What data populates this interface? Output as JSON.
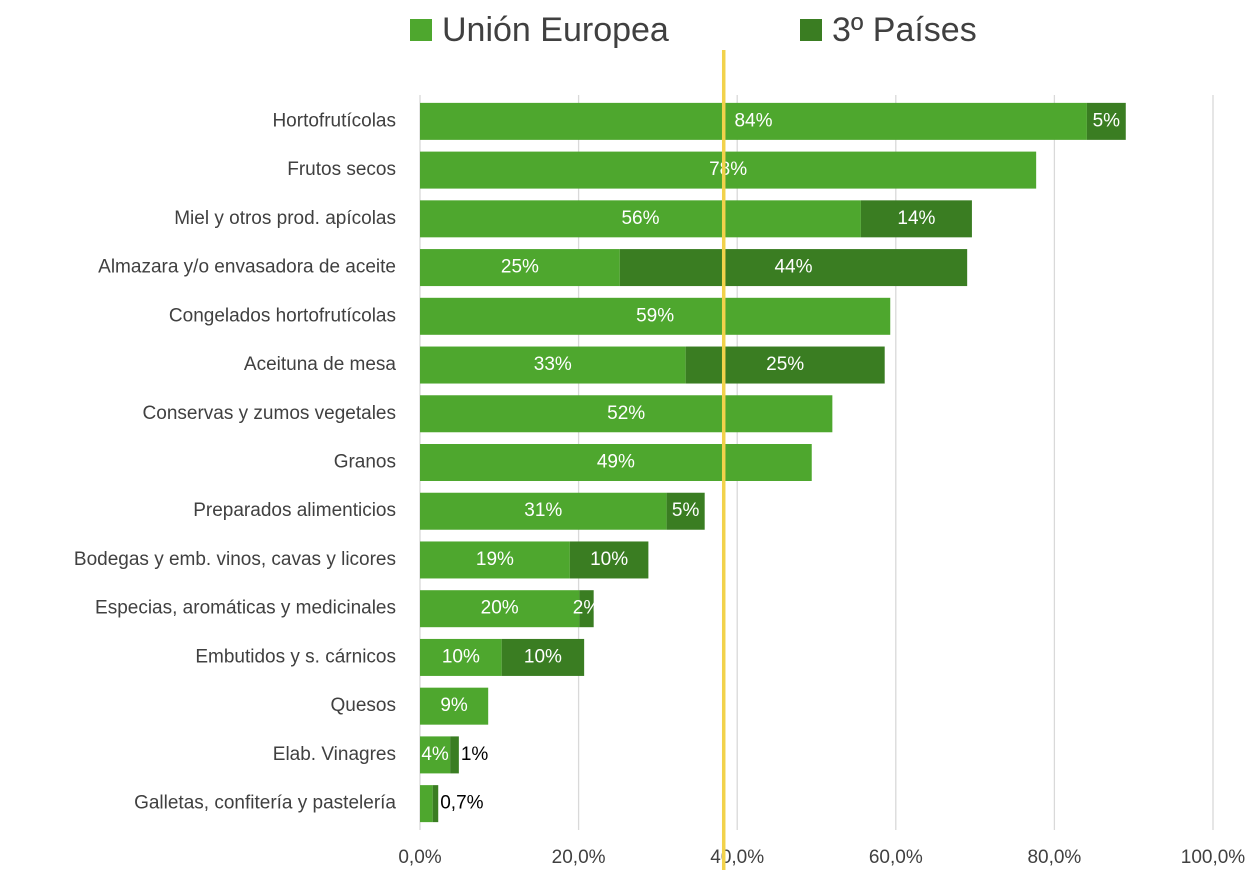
{
  "chart_data": {
    "type": "stacked-barh",
    "categories": [
      "Hortofrutícolas",
      "Frutos secos",
      "Miel y otros prod. apícolas",
      "Almazara y/o envasadora de aceite",
      "Congelados hortofrutícolas",
      "Aceituna de mesa",
      "Conservas y zumos vegetales",
      "Granos",
      "Preparados alimenticios",
      "Bodegas y emb. vinos, cavas y licores",
      "Especias, aromáticas y medicinales",
      "Embutidos y s. cárnicos",
      "Quesos",
      "Elab. Vinagres",
      "Galletas, confitería y pastelería"
    ],
    "series": [
      {
        "name": "Unión Europea",
        "color": "#4ea72e",
        "values": [
          84.1,
          77.7,
          55.6,
          25.2,
          59.3,
          33.5,
          52.0,
          49.4,
          31.1,
          18.9,
          20.1,
          10.3,
          8.6,
          3.8,
          1.6
        ],
        "value_labels": [
          "84%",
          "78%",
          "56%",
          "25%",
          "59%",
          "33%",
          "52%",
          "49%",
          "31%",
          "19%",
          "20%",
          "10%",
          "9%",
          "4%",
          null
        ]
      },
      {
        "name": "3º Países",
        "color": "#3a7d22",
        "values": [
          4.9,
          null,
          14.0,
          43.8,
          null,
          25.1,
          null,
          null,
          4.8,
          9.9,
          1.8,
          10.4,
          null,
          1.1,
          0.7
        ],
        "value_labels": [
          "5%",
          null,
          "14%",
          "44%",
          null,
          "25%",
          null,
          null,
          "5%",
          "10%",
          "2%",
          "10%",
          null,
          "1%",
          "0,7%"
        ]
      }
    ],
    "xlim": [
      0,
      100
    ],
    "xticks": [
      {
        "value": 0,
        "label": "0,0%"
      },
      {
        "value": 20,
        "label": "20,0%"
      },
      {
        "value": 40,
        "label": "40,0%"
      },
      {
        "value": 60,
        "label": "60,0%"
      },
      {
        "value": 80,
        "label": "80,0%"
      },
      {
        "value": 100,
        "label": "100,0%"
      }
    ],
    "grid": true,
    "legend": "top",
    "reference_line": {
      "value": 38.3,
      "color": "#f2d24b"
    }
  }
}
